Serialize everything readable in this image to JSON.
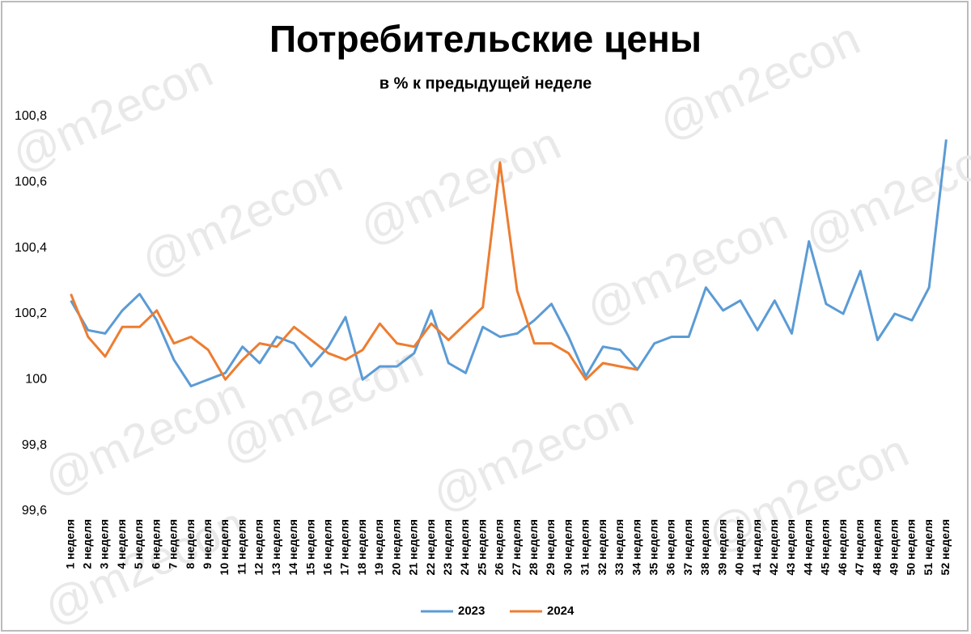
{
  "chart_data": {
    "type": "line",
    "title": "Потребительские цены",
    "subtitle": "в % к предыдущей неделе",
    "watermark": "@m2econ",
    "categories": [
      "1 неделя",
      "2 неделя",
      "3 неделя",
      "4 неделя",
      "5 неделя",
      "6 неделя",
      "7 неделя",
      "8 неделя",
      "9 неделя",
      "10 неделя",
      "11 неделя",
      "12 неделя",
      "13 неделя",
      "14 неделя",
      "15 неделя",
      "16 неделя",
      "17 неделя",
      "18 неделя",
      "19 неделя",
      "20 неделя",
      "21 неделя",
      "22 неделя",
      "23 неделя",
      "24 неделя",
      "25 неделя",
      "26 неделя",
      "27 неделя",
      "28 неделя",
      "29 неделя",
      "30 неделя",
      "31 неделя",
      "32 неделя",
      "33 неделя",
      "34 неделя",
      "35 неделя",
      "36 неделя",
      "37 неделя",
      "38 неделя",
      "39 неделя",
      "40 неделя",
      "41 неделя",
      "42 неделя",
      "43 неделя",
      "44 неделя",
      "45 неделя",
      "46 неделя",
      "47 неделя",
      "48 неделя",
      "49 неделя",
      "50 неделя",
      "51 неделя",
      "52 неделя"
    ],
    "series": [
      {
        "name": "2023",
        "color": "#5b9bd5",
        "values": [
          100.24,
          100.15,
          100.14,
          100.21,
          100.26,
          100.18,
          100.06,
          99.98,
          100.0,
          100.02,
          100.1,
          100.05,
          100.13,
          100.11,
          100.04,
          100.1,
          100.19,
          100.0,
          100.04,
          100.04,
          100.08,
          100.21,
          100.05,
          100.02,
          100.16,
          100.13,
          100.14,
          100.18,
          100.23,
          100.13,
          100.01,
          100.1,
          100.09,
          100.03,
          100.11,
          100.13,
          100.13,
          100.28,
          100.21,
          100.24,
          100.15,
          100.24,
          100.14,
          100.42,
          100.23,
          100.2,
          100.33,
          100.12,
          100.2,
          100.18,
          100.28,
          100.73
        ]
      },
      {
        "name": "2024",
        "color": "#ed7d31",
        "values": [
          100.26,
          100.13,
          100.07,
          100.16,
          100.16,
          100.21,
          100.11,
          100.13,
          100.09,
          100.0,
          100.06,
          100.11,
          100.1,
          100.16,
          100.12,
          100.08,
          100.06,
          100.09,
          100.17,
          100.11,
          100.1,
          100.17,
          100.12,
          100.17,
          100.22,
          100.66,
          100.27,
          100.11,
          100.11,
          100.08,
          100.0,
          100.05,
          100.04,
          100.03,
          null,
          null,
          null,
          null,
          null,
          null,
          null,
          null,
          null,
          null,
          null,
          null,
          null,
          null,
          null,
          null,
          null,
          null
        ]
      }
    ],
    "ylim": [
      99.6,
      100.8
    ],
    "yticks": [
      {
        "value": 99.6,
        "label": "99,6"
      },
      {
        "value": 99.8,
        "label": "99,8"
      },
      100,
      {
        "value": 100.2,
        "label": "100,2"
      },
      {
        "value": 100.4,
        "label": "100,4"
      },
      {
        "value": 100.6,
        "label": "100,6"
      },
      {
        "value": 100.8,
        "label": "100,8"
      }
    ],
    "legend": "bottom"
  }
}
